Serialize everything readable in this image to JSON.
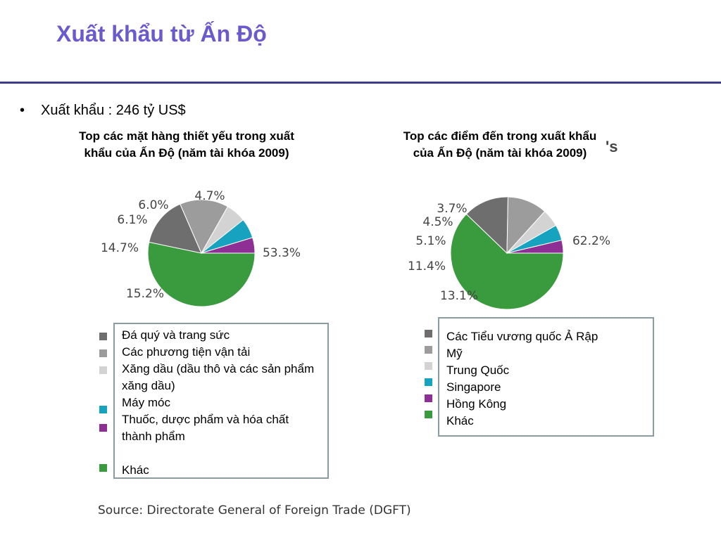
{
  "page": {
    "title": "Xuất khẩu từ Ấn Độ",
    "bullet": "Xuất khẩu : 246 tỷ US$",
    "artifact_text": "'s",
    "source": "Source: Directorate General of Foreign Trade (DGFT)"
  },
  "colors": {
    "title": "#6A5ACD",
    "rule": "#3f3a8f",
    "dark_gray": "#6e6e6e",
    "mid_gray": "#9c9c9c",
    "light_gray": "#d3d3d3",
    "teal": "#17a2c0",
    "purple": "#8e2f96",
    "green": "#3a9a3e"
  },
  "chart_data": [
    {
      "type": "pie",
      "title": "Top các mặt hàng thiết yếu trong xuất khẩu của Ấn Độ (năm tài khóa 2009)",
      "categories": [
        "Khác",
        "Đá quý và trang sức",
        "Các phương tiện vận tải",
        "Xăng dầu (dầu thô và các sản phẩm xăng dầu)",
        "Máy móc",
        "Thuốc, dược phẩm và hóa chất thành phẩm"
      ],
      "values": [
        53.3,
        15.2,
        14.7,
        6.1,
        6.0,
        4.7
      ],
      "labels": [
        "53.3%",
        "15.2%",
        "14.7%",
        "6.1%",
        "6.0%",
        "4.7%"
      ],
      "colors": [
        "#3a9a3e",
        "#6e6e6e",
        "#9c9c9c",
        "#d3d3d3",
        "#17a2c0",
        "#8e2f96"
      ],
      "legend": [
        "Đá quý và trang sức",
        "Các phương tiện vận tải",
        "Xăng dầu (dầu thô và các sản phẩm xăng dầu)",
        "Máy móc",
        "Thuốc, dược phẩm và hóa chất thành phẩm",
        "Khác"
      ]
    },
    {
      "type": "pie",
      "title": "Top các điểm đến trong xuất khẩu của Ấn Độ (năm tài khóa 2009)",
      "categories": [
        "Khác",
        "Các Tiểu vương quốc Ả Rập",
        "Mỹ",
        "Trung Quốc",
        "Singapore",
        "Hồng Kông"
      ],
      "values": [
        62.2,
        13.1,
        11.4,
        5.1,
        4.5,
        3.7
      ],
      "labels": [
        "62.2%",
        "13.1%",
        "11.4%",
        "5.1%",
        "4.5%",
        "3.7%"
      ],
      "colors": [
        "#3a9a3e",
        "#6e6e6e",
        "#9c9c9c",
        "#d3d3d3",
        "#17a2c0",
        "#8e2f96"
      ],
      "legend": [
        "Các Tiểu vương quốc Ả Rập",
        "Mỹ",
        "Trung Quốc",
        "Singapore",
        "Hồng Kông",
        "Khác"
      ]
    }
  ]
}
